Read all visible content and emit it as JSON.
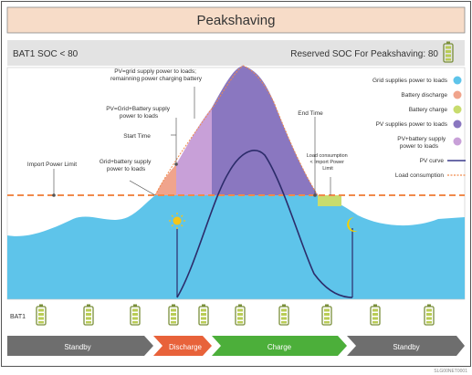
{
  "title": "Peakshaving",
  "header": {
    "left": "BAT1 SOC < 80",
    "right": "Reserved SOC For Peakshaving: 80"
  },
  "legend": [
    {
      "label": "Grid supplies power to loads",
      "color": "#5ec4ea"
    },
    {
      "label": "Battery discharge",
      "color": "#f0a48c"
    },
    {
      "label": "Battery charge",
      "color": "#c8dc6e"
    },
    {
      "label": "PV supplies power to loads",
      "color": "#8a77c0"
    },
    {
      "label": "PV+battery supply power to loads",
      "color": "#c8a0d8"
    },
    {
      "label": "PV curve",
      "color": "#3a3a8c"
    },
    {
      "label": "Load consumption",
      "color": "#f08a4b"
    }
  ],
  "annotations": {
    "pv_grid": "PV+grid supply power to loads; remainning power charging battery",
    "pv_grid_battery": "PV+Grid+Battery supply power to loads",
    "start_time": "Start Time",
    "end_time": "End Time",
    "import_limit": "Import Power Limit",
    "grid_battery": "Grid+battery supply power to loads",
    "load_lt_import": "Load consumption < Import Power Limit"
  },
  "battery_row_label": "BAT1",
  "phases": [
    {
      "label": "Standby",
      "color": "#6e6e6e"
    },
    {
      "label": "Discharge",
      "color": "#e8623a"
    },
    {
      "label": "Charge",
      "color": "#4caf3a"
    },
    {
      "label": "Standby",
      "color": "#6e6e6e"
    }
  ],
  "figure_code": "SLG00NET0001"
}
